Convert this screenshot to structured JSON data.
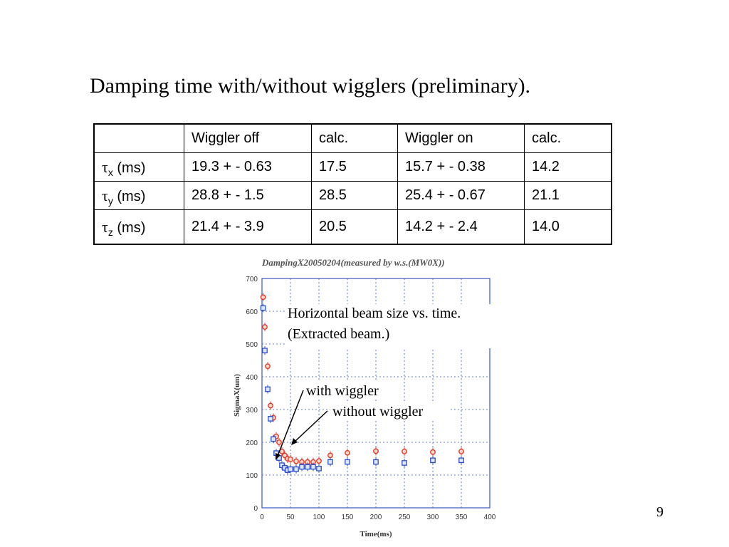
{
  "slide": {
    "title": "Damping time with/without wigglers (preliminary).",
    "page_number": "9"
  },
  "table": {
    "headers": [
      "",
      "Wiggler off",
      "calc.",
      "Wiggler on",
      "calc."
    ],
    "rows": [
      {
        "symbol": "τ",
        "sub": "x",
        "unit": " (ms)",
        "cells": [
          "19.3 + - 0.63",
          "17.5",
          "15.7 + - 0.38",
          "14.2"
        ]
      },
      {
        "symbol": "τ",
        "sub": "y",
        "unit": " (ms)",
        "cells": [
          "28.8 + - 1.5",
          "28.5",
          "25.4 + - 0.67",
          "21.1"
        ]
      },
      {
        "symbol": "τ",
        "sub": "z",
        "unit": " (ms)",
        "cells": [
          "21.4 + - 3.9",
          "20.5",
          "14.2 + - 2.4",
          "14.0"
        ]
      }
    ]
  },
  "chart_data": {
    "type": "scatter",
    "title": "DampingX20050204(measured by w.s.(MW0X))",
    "xlabel": "Time(ms)",
    "ylabel": "SigmaX(um)",
    "xlim": [
      0,
      400
    ],
    "ylim": [
      0,
      700
    ],
    "xticks": [
      0,
      50,
      100,
      150,
      200,
      250,
      300,
      350,
      400
    ],
    "yticks": [
      0,
      100,
      200,
      300,
      400,
      500,
      600,
      700
    ],
    "grid": true,
    "series": [
      {
        "name": "without wiggler",
        "marker": "circle",
        "color": "#e8362a",
        "points": [
          [
            2,
            643
          ],
          [
            5,
            552
          ],
          [
            10,
            432
          ],
          [
            15,
            312
          ],
          [
            20,
            275
          ],
          [
            25,
            218
          ],
          [
            30,
            200
          ],
          [
            35,
            172
          ],
          [
            40,
            160
          ],
          [
            45,
            150
          ],
          [
            50,
            148
          ],
          [
            60,
            142
          ],
          [
            70,
            140
          ],
          [
            80,
            140
          ],
          [
            90,
            140
          ],
          [
            100,
            143
          ],
          [
            120,
            160
          ],
          [
            150,
            168
          ],
          [
            200,
            173
          ],
          [
            250,
            172
          ],
          [
            300,
            170
          ],
          [
            350,
            172
          ]
        ]
      },
      {
        "name": "with wiggler",
        "marker": "square",
        "color": "#2b4fc8",
        "points": [
          [
            2,
            610
          ],
          [
            5,
            480
          ],
          [
            10,
            362
          ],
          [
            15,
            272
          ],
          [
            20,
            210
          ],
          [
            25,
            167
          ],
          [
            30,
            152
          ],
          [
            35,
            130
          ],
          [
            40,
            122
          ],
          [
            45,
            115
          ],
          [
            50,
            118
          ],
          [
            60,
            118
          ],
          [
            70,
            125
          ],
          [
            80,
            125
          ],
          [
            90,
            125
          ],
          [
            100,
            120
          ],
          [
            120,
            140
          ],
          [
            150,
            140
          ],
          [
            200,
            140
          ],
          [
            250,
            137
          ],
          [
            300,
            145
          ],
          [
            350,
            145
          ]
        ]
      }
    ],
    "annotations": {
      "caption_line1": "Horizontal beam size vs. time.",
      "caption_line2": "(Extracted beam.)",
      "with_label": "with wiggler",
      "without_label": "without wiggler"
    }
  }
}
